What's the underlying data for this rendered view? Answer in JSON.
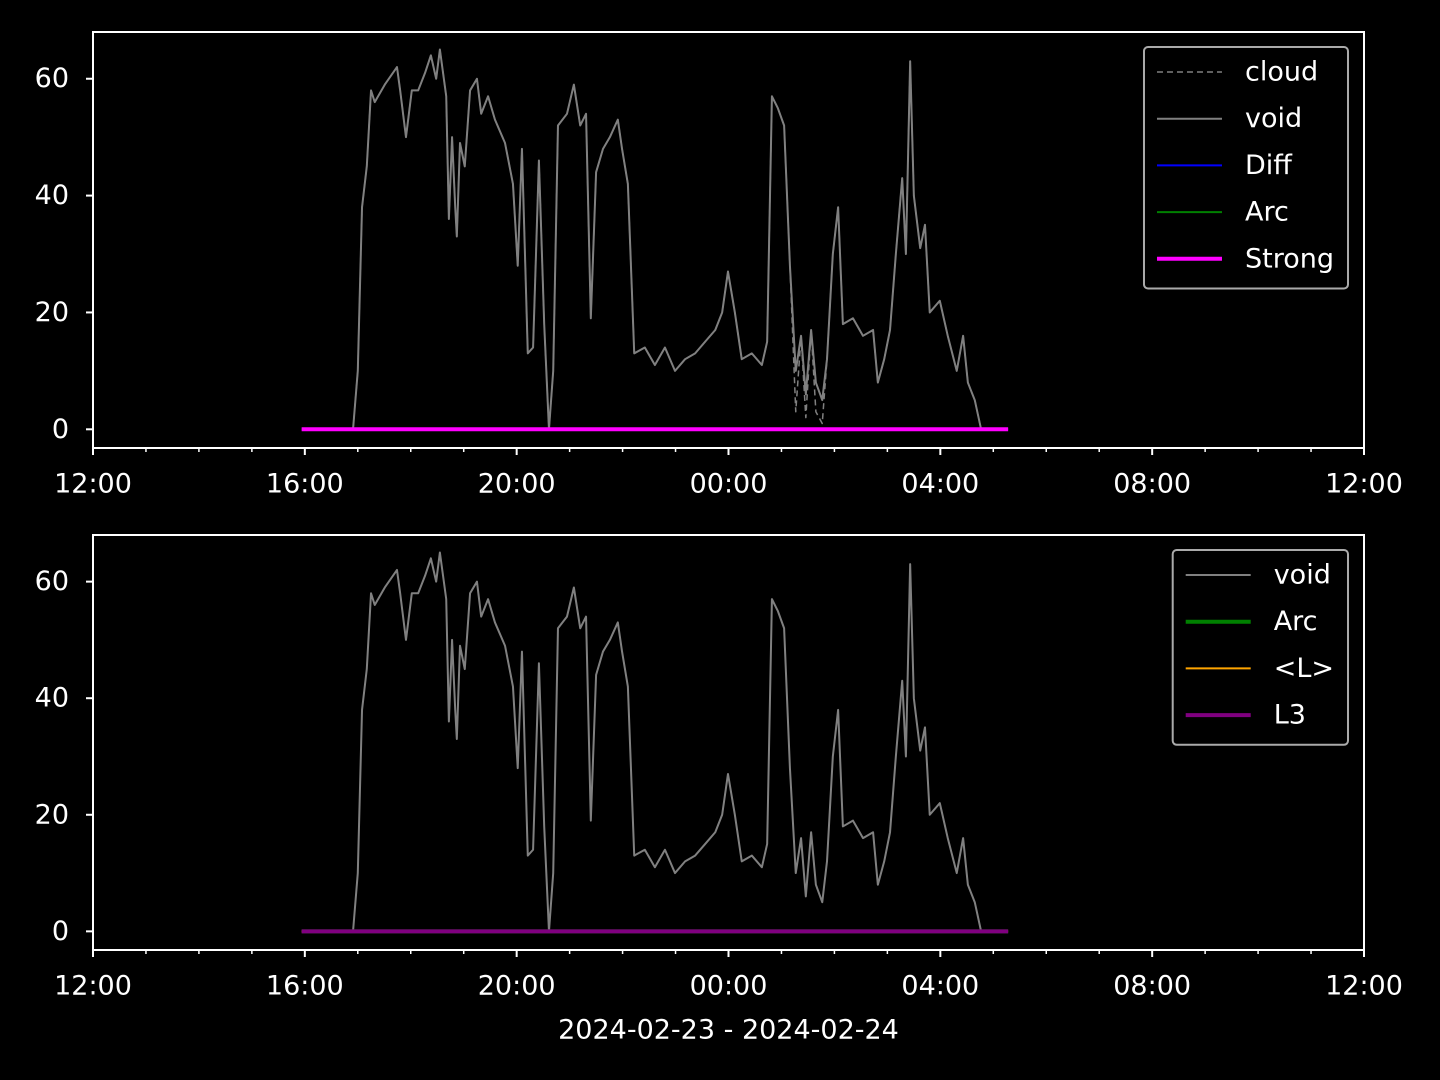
{
  "chart_data": [
    {
      "type": "line",
      "xlim": [
        0,
        24
      ],
      "xticks": [
        {
          "value": 0,
          "label": "12:00"
        },
        {
          "value": 4,
          "label": "16:00"
        },
        {
          "value": 8,
          "label": "20:00"
        },
        {
          "value": 12,
          "label": "00:00"
        },
        {
          "value": 16,
          "label": "04:00"
        },
        {
          "value": 20,
          "label": "08:00"
        },
        {
          "value": 24,
          "label": "12:00"
        }
      ],
      "xminor": [
        1,
        2,
        3,
        5,
        6,
        7,
        9,
        10,
        11,
        13,
        14,
        15,
        17,
        18,
        19,
        21,
        22,
        23
      ],
      "ylim": [
        -3.2,
        68
      ],
      "yticks": [
        0,
        20,
        40,
        60
      ],
      "legend": "upper right",
      "series": [
        {
          "name": "cloud",
          "color": "#808080",
          "linestyle": "dashed",
          "linewidth": 1.5,
          "x": [
            4.91,
            5.0,
            5.08,
            5.17,
            5.25,
            5.32,
            5.51,
            5.74,
            5.8,
            5.91,
            6.02,
            6.14,
            6.27,
            6.38,
            6.48,
            6.55,
            6.67,
            6.72,
            6.78,
            6.84,
            6.87,
            6.93,
            7.02,
            7.12,
            7.25,
            7.33,
            7.46,
            7.59,
            7.78,
            7.93,
            8.02,
            8.1,
            8.21,
            8.31,
            8.42,
            8.52,
            8.61,
            8.69,
            8.78,
            8.95,
            9.08,
            9.2,
            9.31,
            9.4,
            9.5,
            9.63,
            9.76,
            9.91,
            9.99,
            10.1,
            10.22,
            10.42,
            10.61,
            10.8,
            10.99,
            11.18,
            11.37,
            11.56,
            11.75,
            11.88,
            11.99,
            12.12,
            12.25,
            12.44,
            12.63,
            12.73,
            12.82,
            12.93,
            13.05,
            13.16,
            13.27,
            13.37,
            13.46,
            13.56,
            13.65,
            13.77,
            13.86,
            13.97,
            14.07,
            14.16,
            14.35,
            14.54,
            14.73,
            14.82,
            14.94,
            15.05,
            15.16,
            15.28,
            15.35,
            15.43,
            15.5,
            15.62,
            15.71,
            15.8,
            15.99,
            16.14,
            16.31,
            16.43,
            16.52,
            16.65,
            16.77
          ],
          "values": [
            0,
            10,
            38,
            45,
            58,
            56,
            59,
            62,
            58,
            50,
            58,
            58,
            61,
            64,
            60,
            65,
            57,
            36,
            50,
            38,
            33,
            49,
            45,
            58,
            60,
            54,
            57,
            53,
            49,
            42,
            28,
            48,
            13,
            14,
            46,
            18,
            0,
            10,
            52,
            54,
            59,
            52,
            54,
            19,
            44,
            48,
            50,
            53,
            48,
            42,
            13,
            14,
            11,
            14,
            10,
            12,
            13,
            15,
            17,
            20,
            27,
            20,
            12,
            13,
            11,
            15,
            57,
            55,
            52,
            28,
            3,
            16,
            2,
            17,
            3,
            1,
            12,
            30,
            38,
            18,
            19,
            16,
            17,
            8,
            12,
            17,
            30,
            43,
            30,
            63,
            40,
            31,
            35,
            20,
            22,
            16,
            10,
            16,
            8,
            5,
            0
          ]
        },
        {
          "name": "void",
          "color": "#808080",
          "linestyle": "solid",
          "linewidth": 2,
          "x": [
            4.91,
            5.0,
            5.08,
            5.17,
            5.25,
            5.32,
            5.51,
            5.74,
            5.8,
            5.91,
            6.02,
            6.14,
            6.27,
            6.38,
            6.48,
            6.55,
            6.67,
            6.72,
            6.78,
            6.84,
            6.87,
            6.93,
            7.02,
            7.12,
            7.25,
            7.33,
            7.46,
            7.59,
            7.78,
            7.93,
            8.02,
            8.1,
            8.21,
            8.31,
            8.42,
            8.52,
            8.61,
            8.69,
            8.78,
            8.95,
            9.08,
            9.2,
            9.31,
            9.4,
            9.5,
            9.63,
            9.76,
            9.91,
            9.99,
            10.1,
            10.22,
            10.42,
            10.61,
            10.8,
            10.99,
            11.18,
            11.37,
            11.56,
            11.75,
            11.88,
            11.99,
            12.12,
            12.25,
            12.44,
            12.63,
            12.73,
            12.82,
            12.93,
            13.05,
            13.16,
            13.27,
            13.37,
            13.46,
            13.56,
            13.65,
            13.77,
            13.86,
            13.97,
            14.07,
            14.16,
            14.35,
            14.54,
            14.73,
            14.82,
            14.94,
            15.05,
            15.16,
            15.28,
            15.35,
            15.43,
            15.5,
            15.62,
            15.71,
            15.8,
            15.99,
            16.14,
            16.31,
            16.43,
            16.52,
            16.65,
            16.77
          ],
          "values": [
            0,
            10,
            38,
            45,
            58,
            56,
            59,
            62,
            58,
            50,
            58,
            58,
            61,
            64,
            60,
            65,
            57,
            36,
            50,
            38,
            33,
            49,
            45,
            58,
            60,
            54,
            57,
            53,
            49,
            42,
            28,
            48,
            13,
            14,
            46,
            18,
            0,
            10,
            52,
            54,
            59,
            52,
            54,
            19,
            44,
            48,
            50,
            53,
            48,
            42,
            13,
            14,
            11,
            14,
            10,
            12,
            13,
            15,
            17,
            20,
            27,
            20,
            12,
            13,
            11,
            15,
            57,
            55,
            52,
            28,
            10,
            16,
            6,
            17,
            8,
            5,
            12,
            30,
            38,
            18,
            19,
            16,
            17,
            8,
            12,
            17,
            30,
            43,
            30,
            63,
            40,
            31,
            35,
            20,
            22,
            16,
            10,
            16,
            8,
            5,
            0
          ]
        },
        {
          "name": "Diff",
          "color": "#0000ff",
          "linestyle": "solid",
          "linewidth": 2,
          "x": [
            3.94,
            17.28
          ],
          "values": [
            0,
            0
          ]
        },
        {
          "name": "Arc",
          "color": "#008000",
          "linestyle": "solid",
          "linewidth": 2,
          "x": [
            3.94,
            17.28
          ],
          "values": [
            0,
            0
          ]
        },
        {
          "name": "Strong",
          "color": "#ff00ff",
          "linestyle": "solid",
          "linewidth": 4,
          "x": [
            3.94,
            17.28
          ],
          "values": [
            0,
            0
          ]
        }
      ]
    },
    {
      "type": "line",
      "xlabel": "2024-02-23 - 2024-02-24",
      "xlim": [
        0,
        24
      ],
      "xticks": [
        {
          "value": 0,
          "label": "12:00"
        },
        {
          "value": 4,
          "label": "16:00"
        },
        {
          "value": 8,
          "label": "20:00"
        },
        {
          "value": 12,
          "label": "00:00"
        },
        {
          "value": 16,
          "label": "04:00"
        },
        {
          "value": 20,
          "label": "08:00"
        },
        {
          "value": 24,
          "label": "12:00"
        }
      ],
      "xminor": [
        1,
        2,
        3,
        5,
        6,
        7,
        9,
        10,
        11,
        13,
        14,
        15,
        17,
        18,
        19,
        21,
        22,
        23
      ],
      "ylim": [
        -3.2,
        68
      ],
      "yticks": [
        0,
        20,
        40,
        60
      ],
      "legend": "upper right",
      "series": [
        {
          "name": "void",
          "color": "#808080",
          "linestyle": "solid",
          "linewidth": 2,
          "x": [
            4.91,
            5.0,
            5.08,
            5.17,
            5.25,
            5.32,
            5.51,
            5.74,
            5.8,
            5.91,
            6.02,
            6.14,
            6.27,
            6.38,
            6.48,
            6.55,
            6.67,
            6.72,
            6.78,
            6.84,
            6.87,
            6.93,
            7.02,
            7.12,
            7.25,
            7.33,
            7.46,
            7.59,
            7.78,
            7.93,
            8.02,
            8.1,
            8.21,
            8.31,
            8.42,
            8.52,
            8.61,
            8.69,
            8.78,
            8.95,
            9.08,
            9.2,
            9.31,
            9.4,
            9.5,
            9.63,
            9.76,
            9.91,
            9.99,
            10.1,
            10.22,
            10.42,
            10.61,
            10.8,
            10.99,
            11.18,
            11.37,
            11.56,
            11.75,
            11.88,
            11.99,
            12.12,
            12.25,
            12.44,
            12.63,
            12.73,
            12.82,
            12.93,
            13.05,
            13.16,
            13.27,
            13.37,
            13.46,
            13.56,
            13.65,
            13.77,
            13.86,
            13.97,
            14.07,
            14.16,
            14.35,
            14.54,
            14.73,
            14.82,
            14.94,
            15.05,
            15.16,
            15.28,
            15.35,
            15.43,
            15.5,
            15.62,
            15.71,
            15.8,
            15.99,
            16.14,
            16.31,
            16.43,
            16.52,
            16.65,
            16.77
          ],
          "values": [
            0,
            10,
            38,
            45,
            58,
            56,
            59,
            62,
            58,
            50,
            58,
            58,
            61,
            64,
            60,
            65,
            57,
            36,
            50,
            38,
            33,
            49,
            45,
            58,
            60,
            54,
            57,
            53,
            49,
            42,
            28,
            48,
            13,
            14,
            46,
            18,
            0,
            10,
            52,
            54,
            59,
            52,
            54,
            19,
            44,
            48,
            50,
            53,
            48,
            42,
            13,
            14,
            11,
            14,
            10,
            12,
            13,
            15,
            17,
            20,
            27,
            20,
            12,
            13,
            11,
            15,
            57,
            55,
            52,
            28,
            10,
            16,
            6,
            17,
            8,
            5,
            12,
            30,
            38,
            18,
            19,
            16,
            17,
            8,
            12,
            17,
            30,
            43,
            30,
            63,
            40,
            31,
            35,
            20,
            22,
            16,
            10,
            16,
            8,
            5,
            0
          ]
        },
        {
          "name": "Arc",
          "color": "#008000",
          "linestyle": "solid",
          "linewidth": 4,
          "x": [
            3.94,
            17.28
          ],
          "values": [
            0,
            0
          ]
        },
        {
          "name": "<L>",
          "color": "#ffa500",
          "linestyle": "solid",
          "linewidth": 2,
          "x": [
            3.94,
            17.28
          ],
          "values": [
            0,
            0
          ]
        },
        {
          "name": "L3",
          "color": "#800080",
          "linestyle": "solid",
          "linewidth": 4,
          "x": [
            3.94,
            17.28
          ],
          "values": [
            0,
            0
          ]
        }
      ]
    }
  ]
}
